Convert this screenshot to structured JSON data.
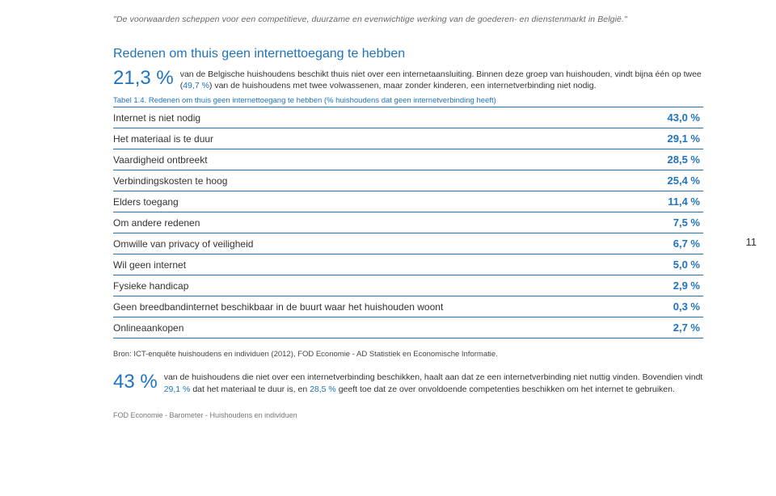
{
  "header_quote": "\"De voorwaarden scheppen voor een competitieve, duurzame en evenwichtige werking van de goederen- en dienstenmarkt in België.\"",
  "section_title": "Redenen om thuis geen internettoegang te hebben",
  "intro": {
    "big_pct": "21,3 %",
    "text_before": "van de Belgische huishoudens beschikt thuis niet over een internetaansluiting. Binnen deze groep van huishouden, vindt bijna één op twee (",
    "hl1": "49,7 %",
    "text_after": ") van de huishoudens met twee volwassenen, maar zonder kinderen, een internetverbinding niet nodig."
  },
  "table_caption": "Tabel 1.4. Redenen om thuis geen internettoegang te hebben (% huishoudens dat geen internetverbinding heeft)",
  "rows": [
    {
      "label": "Internet is niet nodig",
      "value": "43,0 %"
    },
    {
      "label": "Het materiaal is te duur",
      "value": "29,1 %"
    },
    {
      "label": "Vaardigheid ontbreekt",
      "value": "28,5 %"
    },
    {
      "label": "Verbindingskosten te hoog",
      "value": "25,4 %"
    },
    {
      "label": "Elders toegang",
      "value": "11,4 %"
    },
    {
      "label": "Om andere redenen",
      "value": "7,5 %"
    },
    {
      "label": "Omwille van privacy of veiligheid",
      "value": "6,7 %"
    },
    {
      "label": "Wil geen internet",
      "value": "5,0 %"
    },
    {
      "label": "Fysieke handicap",
      "value": "2,9 %"
    },
    {
      "label": "Geen breedbandinternet beschikbaar in de buurt waar het huishouden woont",
      "value": "0,3 %"
    },
    {
      "label": "Onlineaankopen",
      "value": "2,7 %"
    }
  ],
  "source": "Bron: ICT-enquête huishoudens en individuen (2012), FOD Economie - AD Statistiek en Economische Informatie.",
  "conclusion": {
    "big_pct": "43 %",
    "t1": "van de huishoudens die niet over een internetverbinding beschikken, haalt aan dat ze een internetverbinding niet nuttig vinden. Bovendien vindt ",
    "hl1": "29,1 %",
    "t2": " dat het materiaal te duur is, en ",
    "hl2": "28,5 %",
    "t3": " geeft toe dat ze over onvoldoende competenties beschikken om het internet te gebruiken."
  },
  "footer": "FOD Economie - Barometer - Huishoudens en individuen",
  "page_number": "11"
}
